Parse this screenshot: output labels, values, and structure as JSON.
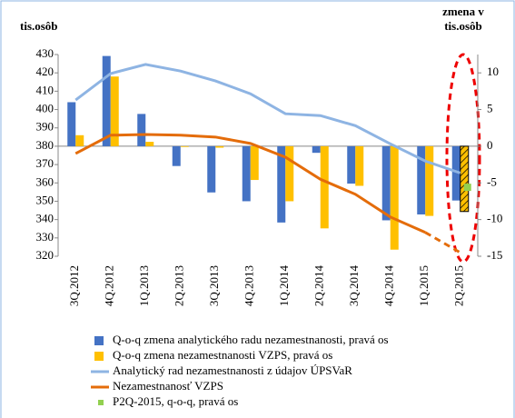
{
  "chart_data": {
    "type": "combo",
    "ylabel": "tis.osôb",
    "y2label": [
      "zmena v",
      "tis.osôb"
    ],
    "categories": [
      "3Q.2012",
      "4Q.2012",
      "1Q.2013",
      "2Q.2013",
      "3Q.2013",
      "4Q.2013",
      "1Q.2014",
      "2Q.2014",
      "3Q.2014",
      "4Q.2014",
      "1Q.2015",
      "2Q.2015"
    ],
    "ylim": [
      320,
      430
    ],
    "yticks": [
      320,
      330,
      340,
      350,
      360,
      370,
      380,
      390,
      400,
      410,
      420,
      430
    ],
    "y2lim": [
      -15,
      12.5
    ],
    "y2ticks": [
      -15,
      -10,
      -5,
      0,
      5,
      10
    ],
    "series": [
      {
        "name": "Q-o-q zmena analytického radu nezamestnanosti, pravá os",
        "type": "bar",
        "axis": "y2",
        "color": "#4472c4",
        "values": [
          6.0,
          12.3,
          4.4,
          -2.7,
          -6.3,
          -7.5,
          -10.4,
          -0.9,
          -5.1,
          -10.1,
          -9.3,
          -7.4
        ]
      },
      {
        "name": "Q-o-q zmena nezamestnanosti VZPS, pravá os",
        "type": "bar",
        "axis": "y2",
        "color": "#ffc000",
        "hatched": [
          11
        ],
        "values": [
          1.5,
          9.5,
          0.6,
          -0.1,
          -0.2,
          -4.6,
          -7.5,
          -11.2,
          -5.4,
          -14.1,
          -9.5,
          -8.9
        ]
      },
      {
        "name": "Analytický rad nezamestnanosti z údajov ÚPSVaR",
        "type": "line",
        "color": "#8eb4e3",
        "values": [
          405.2,
          419.6,
          424.6,
          421.0,
          415.6,
          408.6,
          397.7,
          396.7,
          391.2,
          381.3,
          371.9,
          365.4
        ]
      },
      {
        "name": "Nezamestnanosť VZPS",
        "type": "line",
        "color": "#e46c0a",
        "dashed_last": true,
        "values": [
          376.0,
          386.0,
          386.4,
          386.0,
          385.0,
          381.5,
          374.0,
          362.0,
          353.8,
          341.4,
          333.0,
          322.0
        ]
      },
      {
        "name": "P2Q-2015, q-o-q, pravá os",
        "type": "point",
        "axis": "y2",
        "color": "#92d050",
        "values": [
          null,
          null,
          null,
          null,
          null,
          null,
          null,
          null,
          null,
          null,
          null,
          -5.6
        ]
      }
    ]
  }
}
